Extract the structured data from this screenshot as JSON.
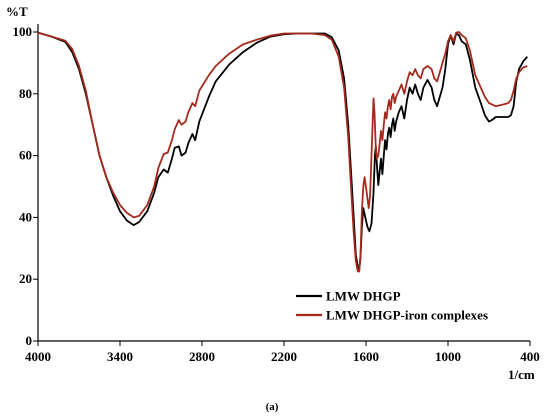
{
  "chart_data": {
    "type": "line",
    "title": "",
    "xlabel": "1/cm",
    "ylabel": "%T",
    "caption": "(a)",
    "x_reversed": true,
    "xlim": [
      4000,
      400
    ],
    "ylim": [
      0,
      100
    ],
    "x_ticks": [
      4000,
      3400,
      2800,
      2200,
      1600,
      1000,
      400
    ],
    "y_ticks": [
      0,
      20,
      40,
      60,
      80,
      100
    ],
    "grid": false,
    "legend_position": "bottom-right",
    "series": [
      {
        "name": "LMW DHGP",
        "color": "#000000",
        "points": [
          [
            4000,
            99.8
          ],
          [
            3900,
            98.5
          ],
          [
            3800,
            96.8
          ],
          [
            3750,
            93.5
          ],
          [
            3700,
            88
          ],
          [
            3650,
            80
          ],
          [
            3600,
            70
          ],
          [
            3550,
            60
          ],
          [
            3500,
            53
          ],
          [
            3450,
            47
          ],
          [
            3400,
            42
          ],
          [
            3350,
            39
          ],
          [
            3300,
            37.5
          ],
          [
            3260,
            38.5
          ],
          [
            3200,
            42
          ],
          [
            3150,
            48
          ],
          [
            3120,
            53
          ],
          [
            3080,
            55.5
          ],
          [
            3050,
            54.5
          ],
          [
            3020,
            59
          ],
          [
            3000,
            62.5
          ],
          [
            2970,
            63
          ],
          [
            2950,
            60
          ],
          [
            2920,
            61
          ],
          [
            2900,
            64
          ],
          [
            2870,
            67
          ],
          [
            2850,
            65
          ],
          [
            2820,
            71
          ],
          [
            2750,
            79
          ],
          [
            2700,
            84
          ],
          [
            2600,
            89.5
          ],
          [
            2500,
            93.5
          ],
          [
            2400,
            96.5
          ],
          [
            2300,
            98.5
          ],
          [
            2200,
            99.3
          ],
          [
            2100,
            99.5
          ],
          [
            2000,
            99.5
          ],
          [
            1900,
            99.5
          ],
          [
            1850,
            98.3
          ],
          [
            1800,
            94
          ],
          [
            1760,
            85
          ],
          [
            1730,
            70
          ],
          [
            1710,
            55
          ],
          [
            1690,
            40
          ],
          [
            1675,
            28
          ],
          [
            1660,
            24
          ],
          [
            1650,
            23
          ],
          [
            1640,
            27
          ],
          [
            1630,
            37
          ],
          [
            1620,
            43
          ],
          [
            1610,
            41
          ],
          [
            1590,
            37
          ],
          [
            1575,
            35.5
          ],
          [
            1560,
            38
          ],
          [
            1545,
            48
          ],
          [
            1535,
            60
          ],
          [
            1528,
            63
          ],
          [
            1520,
            57
          ],
          [
            1510,
            50.5
          ],
          [
            1500,
            55
          ],
          [
            1490,
            59
          ],
          [
            1480,
            54
          ],
          [
            1470,
            60
          ],
          [
            1460,
            65
          ],
          [
            1450,
            62
          ],
          [
            1440,
            67
          ],
          [
            1430,
            69
          ],
          [
            1420,
            66
          ],
          [
            1410,
            70
          ],
          [
            1400,
            72
          ],
          [
            1390,
            68
          ],
          [
            1380,
            71
          ],
          [
            1360,
            74
          ],
          [
            1340,
            76
          ],
          [
            1320,
            72
          ],
          [
            1300,
            78
          ],
          [
            1280,
            82
          ],
          [
            1260,
            80
          ],
          [
            1240,
            83
          ],
          [
            1220,
            80
          ],
          [
            1200,
            78
          ],
          [
            1180,
            82
          ],
          [
            1150,
            84.5
          ],
          [
            1120,
            82
          ],
          [
            1100,
            78
          ],
          [
            1080,
            76
          ],
          [
            1060,
            79
          ],
          [
            1040,
            82
          ],
          [
            1020,
            88
          ],
          [
            1000,
            96
          ],
          [
            980,
            99
          ],
          [
            960,
            96
          ],
          [
            940,
            99.5
          ],
          [
            920,
            99
          ],
          [
            900,
            97
          ],
          [
            870,
            96
          ],
          [
            840,
            91
          ],
          [
            800,
            82
          ],
          [
            760,
            77
          ],
          [
            730,
            73
          ],
          [
            700,
            71
          ],
          [
            680,
            71.5
          ],
          [
            650,
            72.5
          ],
          [
            600,
            72.5
          ],
          [
            560,
            72.5
          ],
          [
            540,
            73
          ],
          [
            520,
            76
          ],
          [
            500,
            84
          ],
          [
            480,
            88
          ],
          [
            450,
            90.5
          ],
          [
            420,
            92
          ]
        ]
      },
      {
        "name": "LMW DHGP-iron complexes",
        "color": "#A52A1E",
        "points": [
          [
            4000,
            99.8
          ],
          [
            3900,
            98.5
          ],
          [
            3800,
            97.2
          ],
          [
            3750,
            94.5
          ],
          [
            3700,
            89
          ],
          [
            3650,
            81
          ],
          [
            3600,
            70
          ],
          [
            3550,
            60
          ],
          [
            3500,
            53
          ],
          [
            3450,
            48
          ],
          [
            3400,
            44
          ],
          [
            3350,
            41.5
          ],
          [
            3300,
            40
          ],
          [
            3260,
            40.5
          ],
          [
            3200,
            44
          ],
          [
            3150,
            50
          ],
          [
            3120,
            56
          ],
          [
            3080,
            60.5
          ],
          [
            3050,
            61
          ],
          [
            3020,
            65
          ],
          [
            3000,
            68.5
          ],
          [
            2970,
            71.5
          ],
          [
            2950,
            70
          ],
          [
            2920,
            71
          ],
          [
            2900,
            74
          ],
          [
            2870,
            77
          ],
          [
            2850,
            76
          ],
          [
            2820,
            81
          ],
          [
            2750,
            86
          ],
          [
            2700,
            89
          ],
          [
            2600,
            93
          ],
          [
            2500,
            96
          ],
          [
            2400,
            97.5
          ],
          [
            2300,
            98.8
          ],
          [
            2200,
            99.5
          ],
          [
            2100,
            99.5
          ],
          [
            2000,
            99.5
          ],
          [
            1900,
            99
          ],
          [
            1850,
            97.5
          ],
          [
            1800,
            92
          ],
          [
            1760,
            82
          ],
          [
            1730,
            66
          ],
          [
            1710,
            50
          ],
          [
            1690,
            35
          ],
          [
            1675,
            26
          ],
          [
            1660,
            22.5
          ],
          [
            1650,
            22.5
          ],
          [
            1640,
            28
          ],
          [
            1630,
            42
          ],
          [
            1620,
            50
          ],
          [
            1610,
            53
          ],
          [
            1595,
            48
          ],
          [
            1580,
            43
          ],
          [
            1570,
            47
          ],
          [
            1560,
            60
          ],
          [
            1550,
            72
          ],
          [
            1545,
            78.5
          ],
          [
            1538,
            74
          ],
          [
            1530,
            64
          ],
          [
            1522,
            59
          ],
          [
            1510,
            60
          ],
          [
            1500,
            64
          ],
          [
            1490,
            68
          ],
          [
            1480,
            65
          ],
          [
            1470,
            70
          ],
          [
            1460,
            74
          ],
          [
            1450,
            72
          ],
          [
            1440,
            76
          ],
          [
            1430,
            78
          ],
          [
            1420,
            75
          ],
          [
            1410,
            79
          ],
          [
            1400,
            80
          ],
          [
            1390,
            77
          ],
          [
            1380,
            79
          ],
          [
            1360,
            81
          ],
          [
            1340,
            83
          ],
          [
            1320,
            80
          ],
          [
            1300,
            84
          ],
          [
            1280,
            87
          ],
          [
            1260,
            86
          ],
          [
            1240,
            88
          ],
          [
            1220,
            86
          ],
          [
            1200,
            85
          ],
          [
            1180,
            88
          ],
          [
            1150,
            89
          ],
          [
            1120,
            88
          ],
          [
            1100,
            85
          ],
          [
            1080,
            84
          ],
          [
            1060,
            87
          ],
          [
            1040,
            90
          ],
          [
            1020,
            93
          ],
          [
            1000,
            97
          ],
          [
            980,
            99
          ],
          [
            960,
            97
          ],
          [
            940,
            99.8
          ],
          [
            920,
            100
          ],
          [
            900,
            99
          ],
          [
            870,
            98
          ],
          [
            840,
            94
          ],
          [
            800,
            86
          ],
          [
            760,
            82
          ],
          [
            730,
            79
          ],
          [
            700,
            77
          ],
          [
            650,
            76
          ],
          [
            600,
            76.5
          ],
          [
            560,
            77
          ],
          [
            540,
            78
          ],
          [
            520,
            81
          ],
          [
            500,
            85
          ],
          [
            480,
            87
          ],
          [
            450,
            88.5
          ],
          [
            420,
            89
          ]
        ]
      }
    ]
  }
}
